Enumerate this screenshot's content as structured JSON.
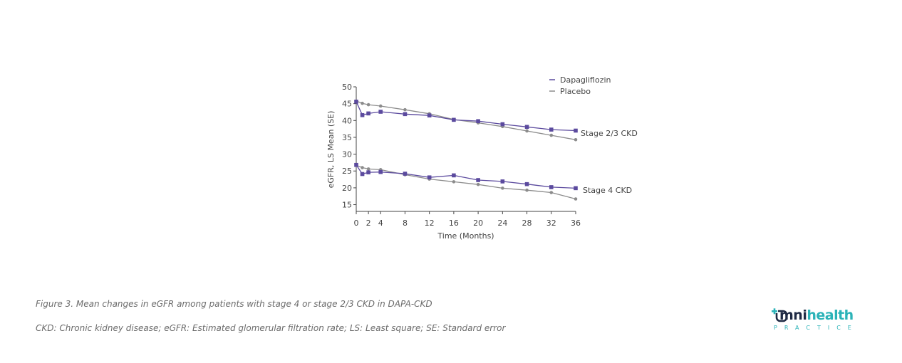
{
  "chart_data": {
    "type": "line",
    "title": "",
    "xlabel": "Time (Months)",
    "ylabel": "eGFR, LS Mean (SE)",
    "x": [
      0,
      2,
      4,
      8,
      12,
      16,
      20,
      24,
      28,
      32,
      36
    ],
    "xticks": [
      0,
      2,
      4,
      8,
      12,
      16,
      20,
      24,
      28,
      32,
      36
    ],
    "yticks": [
      15,
      20,
      25,
      30,
      35,
      40,
      45,
      50
    ],
    "xlim": [
      0,
      36
    ],
    "ylim": [
      13,
      50
    ],
    "legend": [
      {
        "name": "Dapagliflozin",
        "color": "#5b4a9e"
      },
      {
        "name": "Placebo",
        "color": "#8c8c8c"
      }
    ],
    "series": [
      {
        "name": "Dapagliflozin",
        "group": "Stage 2/3 CKD",
        "color": "#5b4a9e",
        "marker": "square",
        "x": [
          0,
          1,
          2,
          4,
          8,
          12,
          16,
          20,
          24,
          28,
          32,
          36
        ],
        "values": [
          45.6,
          41.6,
          42.1,
          42.6,
          41.9,
          41.5,
          40.2,
          39.8,
          38.9,
          38.1,
          37.3,
          37.0
        ]
      },
      {
        "name": "Placebo",
        "group": "Stage 2/3 CKD",
        "color": "#8c8c8c",
        "marker": "circle",
        "x": [
          0,
          1,
          2,
          4,
          8,
          12,
          16,
          20,
          24,
          28,
          32,
          36
        ],
        "values": [
          45.8,
          45.1,
          44.7,
          44.3,
          43.2,
          42.0,
          40.3,
          39.3,
          38.2,
          36.9,
          35.6,
          34.3
        ]
      },
      {
        "name": "Dapagliflozin",
        "group": "Stage 4 CKD",
        "color": "#5b4a9e",
        "marker": "square",
        "x": [
          0,
          1,
          2,
          4,
          8,
          12,
          16,
          20,
          24,
          28,
          32,
          36
        ],
        "values": [
          26.8,
          24.1,
          24.6,
          24.7,
          24.2,
          23.1,
          23.7,
          22.3,
          21.9,
          21.1,
          20.2,
          19.9
        ]
      },
      {
        "name": "Placebo",
        "group": "Stage 4 CKD",
        "color": "#8c8c8c",
        "marker": "circle",
        "x": [
          0,
          1,
          2,
          4,
          8,
          12,
          16,
          20,
          24,
          28,
          32,
          36
        ],
        "values": [
          26.7,
          26.0,
          25.6,
          25.4,
          23.9,
          22.6,
          21.8,
          21.0,
          19.9,
          19.3,
          18.6,
          16.7
        ]
      }
    ],
    "annotations": [
      "Stage 2/3 CKD",
      "Stage 4 CKD"
    ]
  },
  "captions": {
    "figure": "Figure 3. Mean changes in eGFR among patients with stage 4 or stage 2/3 CKD in DAPA-CKD",
    "abbreviations": "CKD: Chronic kidney disease; eGFR: Estimated glomerular filtration rate; LS: Least square; SE: Standard error"
  },
  "logo": {
    "word_part1": "mni",
    "word_part2": "health",
    "subtitle": "PRACTICE",
    "icon": "omnihealth-logo-icon"
  }
}
